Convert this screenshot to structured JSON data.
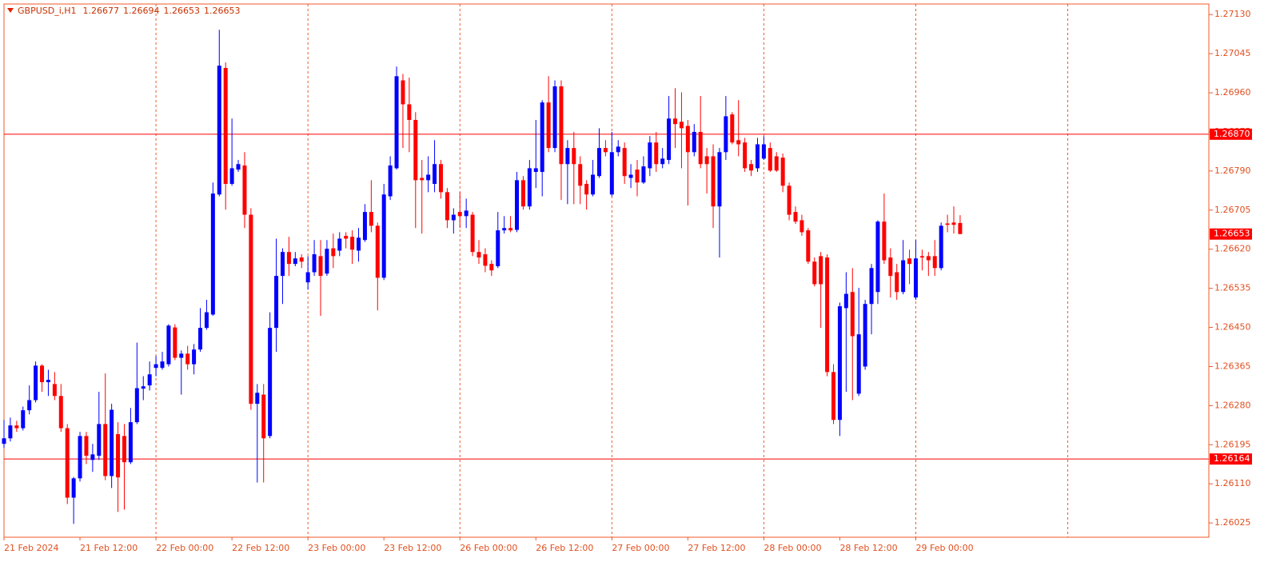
{
  "chart_data": {
    "type": "candlestick",
    "symbol": "GBPUSD_i,H1",
    "up_color": "#0000ff",
    "down_color": "#ff0000",
    "level_color": "#ff0000",
    "grid": true,
    "ylim": [
      1.25994,
      1.27153
    ],
    "yticks": [
      {
        "value": 1.2713,
        "label": "1.27130"
      },
      1.27045,
      {
        "value": 1.2696,
        "label": "1.26960"
      },
      1.26875,
      {
        "value": 1.2679,
        "label": "1.26790"
      },
      1.26705,
      {
        "value": 1.2662,
        "label": "1.26620"
      },
      1.26535,
      {
        "value": 1.2645,
        "label": "1.26450"
      },
      1.26365,
      {
        "value": 1.2628,
        "label": "1.26280"
      },
      1.26195,
      {
        "value": 1.2611,
        "label": "1.26110"
      },
      1.26025
    ],
    "levels": [
      {
        "value": 1.2687,
        "label": "1.26870"
      },
      1.26164
    ],
    "categories": [
      "21 Feb 2024",
      null,
      null,
      null,
      null,
      null,
      null,
      null,
      null,
      null,
      null,
      null,
      "21 Feb 12:00",
      null,
      null,
      null,
      null,
      null,
      null,
      null,
      null,
      null,
      null,
      null,
      "22 Feb 00:00",
      null,
      null,
      null,
      null,
      null,
      null,
      null,
      null,
      null,
      null,
      null,
      "22 Feb 12:00",
      null,
      null,
      null,
      null,
      null,
      null,
      null,
      null,
      null,
      null,
      null,
      "23 Feb 00:00",
      null,
      null,
      null,
      null,
      null,
      null,
      null,
      null,
      null,
      null,
      null,
      "23 Feb 12:00",
      null,
      null,
      null,
      null,
      null,
      null,
      null,
      null,
      null,
      null,
      null,
      "26 Feb 00:00",
      null,
      null,
      null,
      null,
      null,
      null,
      null,
      null,
      null,
      null,
      null,
      "26 Feb 12:00",
      null,
      null,
      null,
      null,
      null,
      null,
      null,
      null,
      null,
      null,
      null,
      "27 Feb 00:00",
      null,
      null,
      null,
      null,
      null,
      null,
      null,
      null,
      null,
      null,
      null,
      "27 Feb 12:00",
      null,
      null,
      null,
      null,
      null,
      null,
      null,
      null,
      null,
      null,
      null,
      "28 Feb 00:00",
      null,
      null,
      null,
      null,
      null,
      null,
      null,
      null,
      null,
      null,
      null,
      "28 Feb 12:00",
      null,
      null,
      null,
      null,
      null,
      null,
      null,
      null,
      null,
      null,
      null,
      "29 Feb 00:00",
      null,
      null,
      null,
      null,
      null,
      null,
      null
    ],
    "open": [
      1.26197,
      1.26209,
      1.26237,
      1.26231,
      1.2627,
      1.26292,
      1.26367,
      1.26331,
      1.26327,
      1.26301,
      1.26231,
      1.2608,
      1.26122,
      1.26214,
      1.26162,
      1.26171,
      1.2624,
      1.26127,
      1.26218,
      1.26214,
      1.26157,
      1.26244,
      1.26317,
      1.26324,
      1.26362,
      1.26362,
      1.2637,
      1.2645,
      1.26384,
      1.26393,
      1.2637,
      1.26402,
      1.26449,
      1.26478,
      1.26739,
      1.27014,
      1.26762,
      1.26793,
      1.26802,
      1.26695,
      1.26284,
      1.26304,
      1.26214,
      1.26449,
      1.26562,
      1.26614,
      1.26588,
      1.26602,
      1.26548,
      1.2657,
      1.26605,
      1.26567,
      1.26622,
      1.26617,
      1.26649,
      1.26647,
      1.26617,
      1.2664,
      1.26701,
      1.26671,
      1.26558,
      1.26735,
      1.26796,
      1.26987,
      1.26935,
      1.26901,
      1.26775,
      1.2677,
      1.26762,
      1.26805,
      1.26744,
      1.26683,
      1.26701,
      1.26692,
      1.26695,
      1.26614,
      1.26609,
      1.26588,
      1.26583,
      1.26661,
      1.26666,
      1.26662,
      1.2677,
      1.26713,
      1.26788,
      1.26788,
      1.26939,
      1.2684,
      1.26974,
      1.26805,
      1.2684,
      1.26805,
      1.26762,
      1.26739,
      1.26779,
      1.2684,
      1.26739,
      1.26831,
      1.2684,
      1.26775,
      1.26793,
      1.26765,
      1.26796,
      1.26852,
      1.26805,
      1.26814,
      1.26904,
      1.26897,
      1.26888,
      1.26831,
      1.26875,
      1.26822,
      1.26822,
      1.26713,
      1.26831,
      1.26913,
      1.26857,
      1.26852,
      1.26805,
      1.26796,
      1.26817,
      1.2684,
      1.26822,
      1.26819,
      1.26758,
      1.26701,
      1.26683,
      1.26661,
      1.26593,
      1.26605,
      1.26602,
      1.26353,
      1.26249,
      1.26492,
      1.26527,
      1.26306,
      1.26365,
      1.26501,
      1.26527,
      1.2668,
      1.26602,
      1.2657,
      1.26527,
      1.266,
      1.26515,
      1.26605,
      1.26605,
      1.26605,
      1.26579,
      1.26676,
      1.26678,
      1.26677
    ],
    "high": [
      1.26249,
      1.26254,
      1.26247,
      1.26278,
      1.26324,
      1.26376,
      1.2637,
      1.26358,
      1.26353,
      1.26327,
      1.2624,
      1.26125,
      1.26223,
      1.26223,
      1.26197,
      1.2631,
      1.2635,
      1.26284,
      1.26244,
      1.2624,
      1.26275,
      1.26417,
      1.26344,
      1.26376,
      1.26388,
      1.26397,
      1.26457,
      1.26457,
      1.264,
      1.2641,
      1.26414,
      1.26492,
      1.2651,
      1.26765,
      1.27097,
      1.27026,
      1.26904,
      1.26814,
      1.26831,
      1.26709,
      1.26327,
      1.26327,
      1.26483,
      1.26643,
      1.26622,
      1.26647,
      1.26614,
      1.26609,
      1.26605,
      1.2664,
      1.2664,
      1.2664,
      1.26654,
      1.26657,
      1.26657,
      1.26661,
      1.26666,
      1.26718,
      1.2677,
      1.26678,
      1.26762,
      1.26822,
      1.27017,
      1.27001,
      1.26993,
      1.26918,
      1.26814,
      1.26822,
      1.26857,
      1.26814,
      1.26753,
      1.26709,
      1.26744,
      1.2673,
      1.26701,
      1.2664,
      1.26622,
      1.26596,
      1.26701,
      1.26692,
      1.26692,
      1.26788,
      1.26779,
      1.26814,
      1.26901,
      1.26944,
      1.26996,
      1.26987,
      1.26987,
      1.26857,
      1.26875,
      1.26822,
      1.2677,
      1.26814,
      1.26883,
      1.26857,
      1.26875,
      1.26857,
      1.26852,
      1.26805,
      1.26814,
      1.26822,
      1.26866,
      1.26875,
      1.2684,
      1.26953,
      1.2697,
      1.26961,
      1.26901,
      1.26892,
      1.26953,
      1.2684,
      1.26848,
      1.2684,
      1.26953,
      1.26918,
      1.26944,
      1.26862,
      1.26814,
      1.26862,
      1.26866,
      1.26852,
      1.26831,
      1.26828,
      1.26765,
      1.26713,
      1.26695,
      1.26666,
      1.26602,
      1.26614,
      1.26609,
      1.2637,
      1.26504,
      1.2657,
      1.26579,
      1.26536,
      1.2651,
      1.26588,
      1.26683,
      1.26741,
      1.26622,
      1.26588,
      1.2664,
      1.26619,
      1.2664,
      1.26619,
      1.26614,
      1.2664,
      1.26678,
      1.26695,
      1.26713,
      1.26694
    ],
    "low": [
      1.26188,
      1.26202,
      1.26223,
      1.26226,
      1.26261,
      1.26287,
      1.2631,
      1.26301,
      1.26292,
      1.26223,
      1.26066,
      1.26023,
      1.26115,
      1.26153,
      1.26136,
      1.26162,
      1.26118,
      1.26101,
      1.26049,
      1.26054,
      1.26153,
      1.2624,
      1.26292,
      1.26313,
      1.26344,
      1.26358,
      1.26365,
      1.26379,
      1.26304,
      1.26358,
      1.26348,
      1.26397,
      1.26445,
      1.26475,
      1.26735,
      1.26706,
      1.26758,
      1.26788,
      1.26666,
      1.26271,
      1.26113,
      1.26113,
      1.26209,
      1.26397,
      1.26501,
      1.26562,
      1.26583,
      1.26579,
      1.26532,
      1.26562,
      1.26475,
      1.26562,
      1.26579,
      1.26605,
      1.26622,
      1.26588,
      1.26593,
      1.26636,
      1.26657,
      1.26487,
      1.26553,
      1.26727,
      1.26793,
      1.2684,
      1.26831,
      1.26666,
      1.26654,
      1.26744,
      1.26744,
      1.2673,
      1.26666,
      1.26654,
      1.26666,
      1.26666,
      1.26605,
      1.26588,
      1.2657,
      1.26562,
      1.26579,
      1.26654,
      1.26657,
      1.26657,
      1.26706,
      1.26706,
      1.26753,
      1.26735,
      1.26831,
      1.26831,
      1.26727,
      1.26718,
      1.26718,
      1.26718,
      1.26706,
      1.26735,
      1.26775,
      1.26822,
      1.26735,
      1.26822,
      1.26762,
      1.26753,
      1.26735,
      1.26762,
      1.26779,
      1.26788,
      1.26796,
      1.26805,
      1.2684,
      1.26796,
      1.26715,
      1.26822,
      1.26796,
      1.26741,
      1.26666,
      1.26602,
      1.26814,
      1.26848,
      1.26822,
      1.26788,
      1.26779,
      1.26788,
      1.26814,
      1.26788,
      1.26788,
      1.26744,
      1.26683,
      1.26675,
      1.26649,
      1.26588,
      1.26539,
      1.26449,
      1.26344,
      1.2624,
      1.26214,
      1.2631,
      1.26292,
      1.26301,
      1.26358,
      1.26435,
      1.26501,
      1.26588,
      1.26515,
      1.2651,
      1.26522,
      1.26544,
      1.2651,
      1.26574,
      1.26562,
      1.26562,
      1.26574,
      1.26657,
      1.26654,
      1.26653
    ],
    "close": [
      1.26209,
      1.26237,
      1.26231,
      1.2627,
      1.26292,
      1.26367,
      1.26331,
      1.26336,
      1.26301,
      1.26231,
      1.2608,
      1.26122,
      1.26214,
      1.26171,
      1.26174,
      1.2624,
      1.26127,
      1.26271,
      1.26124,
      1.26157,
      1.26244,
      1.26318,
      1.26322,
      1.26348,
      1.2637,
      1.26376,
      1.26454,
      1.26384,
      1.26393,
      1.2637,
      1.26402,
      1.26449,
      1.26483,
      1.26741,
      1.27019,
      1.26762,
      1.26796,
      1.26805,
      1.26695,
      1.26284,
      1.26308,
      1.26209,
      1.26449,
      1.26562,
      1.26614,
      1.26588,
      1.266,
      1.26593,
      1.2657,
      1.26609,
      1.26562,
      1.26621,
      1.26605,
      1.26643,
      1.26643,
      1.26619,
      1.26645,
      1.26701,
      1.26671,
      1.26558,
      1.26739,
      1.26802,
      1.26996,
      1.26935,
      1.26901,
      1.2677,
      1.2677,
      1.26782,
      1.26805,
      1.26744,
      1.26683,
      1.26695,
      1.26692,
      1.26704,
      1.26614,
      1.26602,
      1.26584,
      1.26574,
      1.26661,
      1.26666,
      1.26661,
      1.2677,
      1.26713,
      1.26796,
      1.26796,
      1.26939,
      1.2684,
      1.26974,
      1.26805,
      1.2684,
      1.26805,
      1.26758,
      1.26739,
      1.26782,
      1.2684,
      1.26831,
      1.26831,
      1.26843,
      1.26779,
      1.26782,
      1.26765,
      1.268,
      1.26852,
      1.26805,
      1.26817,
      1.26904,
      1.26892,
      1.26883,
      1.26831,
      1.26875,
      1.26805,
      1.26805,
      1.26713,
      1.26831,
      1.26909,
      1.26852,
      1.26848,
      1.26796,
      1.26791,
      1.26848,
      1.26848,
      1.26791,
      1.26791,
      1.26758,
      1.26695,
      1.2668,
      1.26657,
      1.26593,
      1.26544,
      1.26544,
      1.26353,
      1.26249,
      1.26496,
      1.26523,
      1.26431,
      1.26435,
      1.26501,
      1.26579,
      1.2668,
      1.26596,
      1.26562,
      1.26527,
      1.26596,
      1.26588,
      1.266,
      1.26602,
      1.26596,
      1.26579,
      1.26671,
      1.26673,
      1.26673,
      1.26653
    ]
  }
}
